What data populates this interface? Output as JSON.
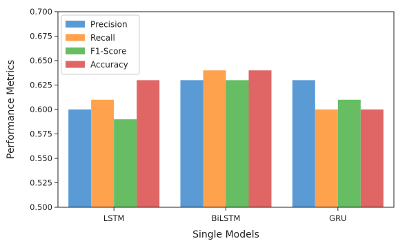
{
  "chart_data": {
    "type": "bar",
    "title": "",
    "xlabel": "Single Models",
    "ylabel": "Performance Metrics",
    "categories": [
      "LSTM",
      "BiLSTM",
      "GRU"
    ],
    "series": [
      {
        "name": "Precision",
        "color": "#5b9bd5",
        "values": [
          0.6,
          0.63,
          0.63
        ]
      },
      {
        "name": "Recall",
        "color": "#ffa24d",
        "values": [
          0.61,
          0.64,
          0.6
        ]
      },
      {
        "name": "F1-Score",
        "color": "#66bd63",
        "values": [
          0.59,
          0.63,
          0.61
        ]
      },
      {
        "name": "Accuracy",
        "color": "#e06666",
        "values": [
          0.63,
          0.64,
          0.6
        ]
      }
    ],
    "ylim": [
      0.5,
      0.7
    ],
    "yticks": [
      "0.500",
      "0.525",
      "0.550",
      "0.575",
      "0.600",
      "0.625",
      "0.650",
      "0.675",
      "0.700"
    ],
    "legend_position": "top-left",
    "grid": false
  }
}
